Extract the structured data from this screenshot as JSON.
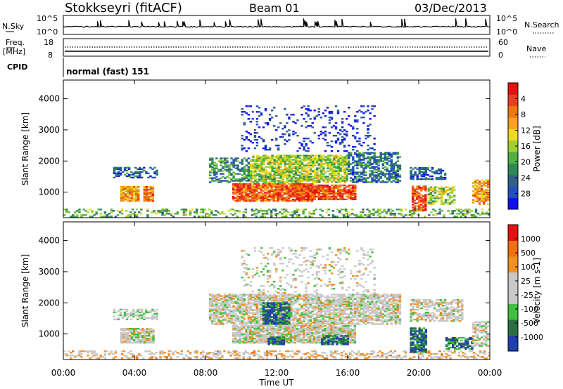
{
  "header": {
    "station": "Stokkseyri (fitACF)",
    "beam": "Beam 01",
    "date": "03/Dec/2013"
  },
  "strip_panels": {
    "nsky": {
      "left_label": "N.Sky",
      "left_ticks": [
        "10^5",
        "10^0"
      ],
      "right_label": "N.Search",
      "right_ticks": [
        "10^5",
        "10^0"
      ]
    },
    "freq": {
      "left_label_1": "Freq.",
      "left_label_2": "[MHz]",
      "left_ticks": [
        "18",
        "8"
      ],
      "right_label": "Nave",
      "right_ticks": [
        "60",
        "0"
      ]
    },
    "cpid": {
      "label": "CPID",
      "value": "normal (fast) 151"
    }
  },
  "x_axis": {
    "label": "Time UT",
    "ticks": [
      "00:00",
      "04:00",
      "08:00",
      "12:00",
      "16:00",
      "20:00",
      "00:00"
    ]
  },
  "chart_data": [
    {
      "type": "heatmap",
      "title": "",
      "xlabel": "Time UT",
      "ylabel": "Slant Range [km]",
      "xlim_hours": [
        0,
        24
      ],
      "ylim_km": [
        180,
        4600
      ],
      "y_ticks": [
        "1000",
        "2000",
        "3000",
        "4000"
      ],
      "colorbar": {
        "label": "Power [dB]",
        "ticks": [
          "4",
          "8",
          "12",
          "16",
          "20",
          "24",
          "28"
        ],
        "range": [
          0,
          30
        ],
        "colors": [
          "#1010f0",
          "#2050c0",
          "#30608a",
          "#2e8a55",
          "#50b040",
          "#a0d030",
          "#f0d820",
          "#f8a020",
          "#f07810",
          "#e84020",
          "#e81010"
        ]
      },
      "regions": [
        {
          "t": [
            0.0,
            24.0
          ],
          "r": [
            200,
            450
          ],
          "level": 0.4,
          "density": 0.35
        },
        {
          "t": [
            2.8,
            5.3
          ],
          "r": [
            1450,
            1800
          ],
          "level": 0.2,
          "density": 0.5
        },
        {
          "t": [
            3.2,
            4.3
          ],
          "r": [
            700,
            1200
          ],
          "level": 0.7,
          "density": 0.9
        },
        {
          "t": [
            4.5,
            5.1
          ],
          "r": [
            700,
            1200
          ],
          "level": 0.75,
          "density": 0.9
        },
        {
          "t": [
            8.2,
            10.5
          ],
          "r": [
            1300,
            2100
          ],
          "level": 0.3,
          "density": 0.55
        },
        {
          "t": [
            9.5,
            14.0
          ],
          "r": [
            700,
            1300
          ],
          "level": 0.8,
          "density": 0.9
        },
        {
          "t": [
            10.5,
            16.0
          ],
          "r": [
            1300,
            2200
          ],
          "level": 0.5,
          "density": 0.75
        },
        {
          "t": [
            13.0,
            16.5
          ],
          "r": [
            750,
            1250
          ],
          "level": 0.85,
          "density": 0.85
        },
        {
          "t": [
            16.0,
            19.0
          ],
          "r": [
            1300,
            2300
          ],
          "level": 0.25,
          "density": 0.6
        },
        {
          "t": [
            10.0,
            17.5
          ],
          "r": [
            2300,
            3800
          ],
          "level": 0.1,
          "density": 0.15
        },
        {
          "t": [
            19.5,
            21.5
          ],
          "r": [
            1400,
            1800
          ],
          "level": 0.2,
          "density": 0.6
        },
        {
          "t": [
            19.6,
            20.5
          ],
          "r": [
            400,
            1200
          ],
          "level": 0.85,
          "density": 0.8
        },
        {
          "t": [
            20.5,
            22.0
          ],
          "r": [
            600,
            1200
          ],
          "level": 0.5,
          "density": 0.6
        },
        {
          "t": [
            23.0,
            24.0
          ],
          "r": [
            600,
            1400
          ],
          "level": 0.7,
          "density": 0.6
        }
      ]
    },
    {
      "type": "heatmap",
      "title": "",
      "xlabel": "Time UT",
      "ylabel": "Slant Range [km]",
      "xlim_hours": [
        0,
        24
      ],
      "ylim_km": [
        180,
        4600
      ],
      "y_ticks": [
        "1000",
        "2000",
        "3000",
        "4000"
      ],
      "colorbar": {
        "label": "Velocity [m s-1]",
        "ticks": [
          "1000",
          "500",
          "100",
          "25",
          "-25",
          "-100",
          "-500",
          "-1000"
        ],
        "range": [
          -1200,
          1200
        ],
        "colors": [
          "#2040b0",
          "#2a7040",
          "#40c040",
          "#c8c8c8",
          "#c8c8c8",
          "#f09020",
          "#f07010",
          "#e81010"
        ]
      },
      "regions": [
        {
          "t": [
            0.0,
            24.0
          ],
          "r": [
            200,
            450
          ],
          "level": 0.6,
          "density": 0.35
        },
        {
          "t": [
            2.8,
            5.3
          ],
          "r": [
            1450,
            1800
          ],
          "level": 0.45,
          "density": 0.5
        },
        {
          "t": [
            3.2,
            5.1
          ],
          "r": [
            700,
            1200
          ],
          "level": 0.5,
          "density": 0.9
        },
        {
          "t": [
            8.2,
            19.0
          ],
          "r": [
            1300,
            2300
          ],
          "level": 0.5,
          "density": 0.75
        },
        {
          "t": [
            9.5,
            16.5
          ],
          "r": [
            700,
            1300
          ],
          "level": 0.5,
          "density": 0.85
        },
        {
          "t": [
            11.2,
            12.8
          ],
          "r": [
            1300,
            2000
          ],
          "level": 0.15,
          "density": 0.8
        },
        {
          "t": [
            11.5,
            12.5
          ],
          "r": [
            650,
            900
          ],
          "level": 0.15,
          "density": 0.9
        },
        {
          "t": [
            14.5,
            16.0
          ],
          "r": [
            650,
            950
          ],
          "level": 0.15,
          "density": 0.8
        },
        {
          "t": [
            19.5,
            20.5
          ],
          "r": [
            400,
            1200
          ],
          "level": 0.15,
          "density": 0.8
        },
        {
          "t": [
            21.5,
            23.0
          ],
          "r": [
            500,
            900
          ],
          "level": 0.15,
          "density": 0.7
        },
        {
          "t": [
            10.0,
            17.5
          ],
          "r": [
            2300,
            3800
          ],
          "level": 0.5,
          "density": 0.15
        },
        {
          "t": [
            19.5,
            22.5
          ],
          "r": [
            1400,
            2100
          ],
          "level": 0.5,
          "density": 0.6
        },
        {
          "t": [
            23.0,
            24.0
          ],
          "r": [
            600,
            1400
          ],
          "level": 0.5,
          "density": 0.6
        }
      ]
    }
  ]
}
